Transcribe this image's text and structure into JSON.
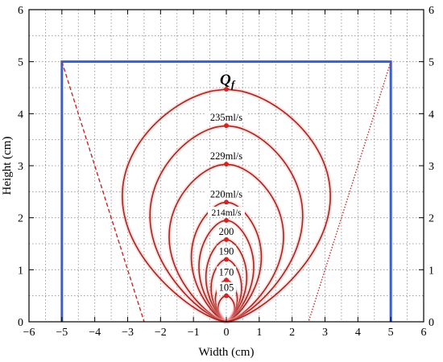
{
  "chart_data": {
    "type": "line",
    "xlabel": "Width (cm)",
    "ylabel": "Height (cm)",
    "xlim": [
      -6,
      6
    ],
    "ylim": [
      0,
      6
    ],
    "x_ticks": [
      "−6",
      "−5",
      "−4",
      "−3",
      "−2",
      "−1",
      "0",
      "1",
      "2",
      "3",
      "4",
      "5",
      "6"
    ],
    "y_ticks": [
      "0",
      "1",
      "2",
      "3",
      "4",
      "5",
      "6"
    ],
    "grid": true,
    "grid_style": "dotted",
    "mirror_axes": true,
    "colors": {
      "container": "#3a5fcd",
      "curves": "#a0281e",
      "guides": "#c82828",
      "markers": "#e02020"
    },
    "container": {
      "x_left": -5,
      "x_right": 5,
      "y_top": 5,
      "y_bottom": 0
    },
    "guide_lines": [
      {
        "name": "left",
        "style": "dashed",
        "points": [
          [
            -5,
            5
          ],
          [
            -2.5,
            0
          ]
        ]
      },
      {
        "name": "right",
        "style": "dotted",
        "points": [
          [
            5,
            5
          ],
          [
            2.5,
            0
          ]
        ]
      }
    ],
    "series": [
      {
        "label": "105",
        "height": 0.5,
        "half_width": 0.27
      },
      {
        "label": "170",
        "height": 0.8,
        "half_width": 0.36
      },
      {
        "label": "190",
        "height": 1.2,
        "half_width": 0.5
      },
      {
        "label": "200",
        "height": 1.58,
        "half_width": 0.67
      },
      {
        "label": "214ml/s",
        "height": 1.95,
        "half_width": 0.9
      },
      {
        "label": "220ml/s",
        "height": 2.3,
        "half_width": 1.15
      },
      {
        "label": "229ml/s",
        "height": 3.03,
        "half_width": 1.88
      },
      {
        "label": "235ml/s",
        "height": 3.77,
        "half_width": 2.51
      },
      {
        "label": "Q",
        "label_sub": "f",
        "height": 4.47,
        "half_width": 3.42
      }
    ]
  }
}
